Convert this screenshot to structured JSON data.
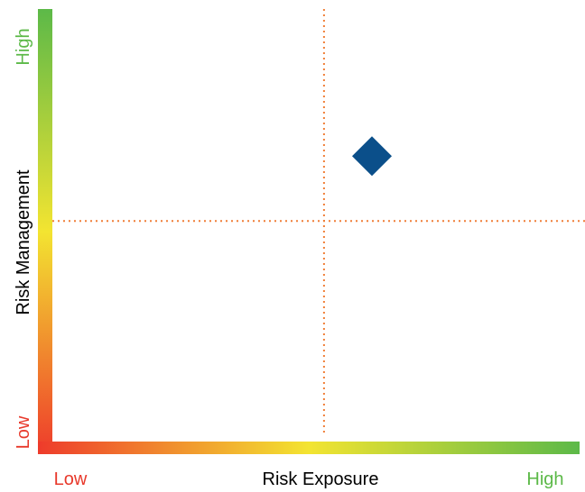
{
  "chart_data": {
    "type": "scatter",
    "title": "",
    "xlabel": "Risk Exposure",
    "ylabel": "Risk Management",
    "x_low_label": "Low",
    "x_high_label": "High",
    "y_low_label": "Low",
    "y_high_label": "High",
    "xlim": [
      0,
      1
    ],
    "ylim": [
      0,
      1
    ],
    "divider_x": 0.51,
    "divider_y": 0.51,
    "grid": false,
    "points": [
      {
        "x": 0.6,
        "y": 0.66,
        "marker": "diamond",
        "color": "#0b4f8a"
      }
    ],
    "colors": {
      "low": "#ee3b2b",
      "mid": "#f3e431",
      "high": "#5cb948",
      "divider": "#f07f38",
      "low_text": "#e8392b",
      "high_text": "#5cb948",
      "axis_title_text": "#000000"
    }
  }
}
